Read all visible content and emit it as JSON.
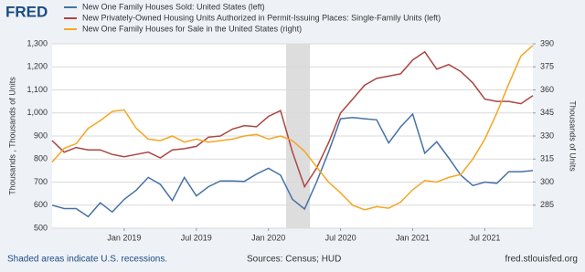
{
  "chart_data": {
    "type": "line",
    "brand": "FRED",
    "y_label": "Thousands , Thousands of Units",
    "y2_label": "Thousands of Units",
    "note": "Shaded areas indicate U.S. recessions.",
    "source": "Sources: Census; HUD",
    "site": "fred.stlouisfed.org",
    "categories": [
      null,
      null,
      null,
      null,
      null,
      null,
      "Jan 2019",
      null,
      null,
      null,
      null,
      null,
      "Jul 2019",
      null,
      null,
      null,
      null,
      null,
      "Jan 2020",
      null,
      null,
      null,
      null,
      null,
      "Jul 2020",
      null,
      null,
      null,
      null,
      null,
      "Jan 2021",
      null,
      null,
      null,
      null,
      null,
      "Jul 2021",
      null,
      null,
      null,
      null
    ],
    "series": [
      {
        "name": "New One Family Houses Sold: United States (left)",
        "color": "#4572a7",
        "values": [
          600,
          585,
          585,
          550,
          610,
          570,
          625,
          665,
          720,
          690,
          620,
          720,
          640,
          680,
          705,
          705,
          703,
          735,
          760,
          730,
          625,
          583,
          700,
          830,
          975,
          980,
          975,
          970,
          870,
          940,
          995,
          825,
          875,
          805,
          730,
          685,
          700,
          695,
          745,
          745,
          750
        ]
      },
      {
        "name": "New Privately-Owned Housing Units Authorized in Permit-Issuing Places: Single-Family Units (left)",
        "color": "#aa4643",
        "values": [
          880,
          830,
          850,
          840,
          840,
          820,
          810,
          820,
          830,
          805,
          840,
          845,
          855,
          895,
          900,
          930,
          945,
          940,
          985,
          1010,
          830,
          680,
          760,
          870,
          1000,
          1060,
          1120,
          1150,
          1160,
          1170,
          1230,
          1265,
          1190,
          1210,
          1180,
          1130,
          1060,
          1050,
          1050,
          1040,
          1075
        ]
      },
      {
        "name": "New One Family Houses for Sale in the United States (right)",
        "color": "#f5a623",
        "axis": "y2",
        "values": [
          313,
          322,
          325,
          335,
          340,
          346,
          347,
          335,
          328,
          327,
          330,
          326,
          328,
          326,
          327,
          328,
          330,
          331,
          328,
          330,
          327,
          320,
          310,
          300,
          293,
          285,
          282,
          284,
          283,
          287,
          295,
          301,
          300,
          303,
          305,
          315,
          328,
          345,
          364,
          382,
          389
        ]
      }
    ],
    "ylim": [
      500,
      1300
    ],
    "yticks": [
      500,
      600,
      700,
      800,
      900,
      {
        "value": 1000,
        "label": "1,000"
      },
      {
        "value": 1100,
        "label": "1,100"
      },
      {
        "value": 1200,
        "label": "1,200"
      },
      {
        "value": 1300,
        "label": "1,300"
      }
    ],
    "y2lim": [
      270,
      390
    ],
    "y2ticks": [
      285,
      300,
      315,
      330,
      345,
      360,
      375,
      390
    ],
    "grid": true
  }
}
